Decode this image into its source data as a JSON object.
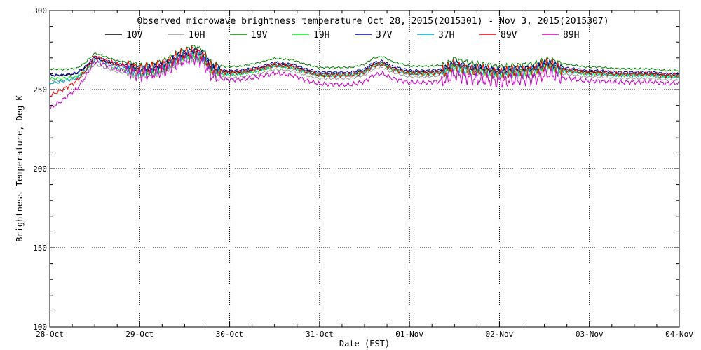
{
  "chart_data": {
    "type": "line",
    "title": "Observed microwave brightness temperature Oct 28, 2015(2015301) - Nov  3, 2015(2015307)",
    "xlabel": "Date (EST)",
    "ylabel": "Brightness Temperature, Deg K",
    "ylim": [
      100,
      300
    ],
    "xlim": [
      0,
      7
    ],
    "y_ticks": [
      100,
      150,
      200,
      250,
      300
    ],
    "x_ticks": [
      {
        "day": 0,
        "label": "28-Oct"
      },
      {
        "day": 1,
        "label": "29-Oct"
      },
      {
        "day": 2,
        "label": "30-Oct"
      },
      {
        "day": 3,
        "label": "31-Oct"
      },
      {
        "day": 4,
        "label": "01-Nov"
      },
      {
        "day": 5,
        "label": "02-Nov"
      },
      {
        "day": 6,
        "label": "03-Nov"
      },
      {
        "day": 7,
        "label": "04-Nov"
      }
    ],
    "grid": true,
    "legend_position": "top",
    "base_curve": {
      "x_days": [
        0,
        0.15,
        0.3,
        0.4,
        0.5,
        0.6,
        0.75,
        0.9,
        1.0,
        1.15,
        1.3,
        1.45,
        1.6,
        1.7,
        1.8,
        1.95,
        2.1,
        2.3,
        2.5,
        2.7,
        2.85,
        3.0,
        3.2,
        3.35,
        3.5,
        3.6,
        3.7,
        3.8,
        4.0,
        4.2,
        4.4,
        4.5,
        4.55,
        4.7,
        4.9,
        5.0,
        5.2,
        5.4,
        5.55,
        5.7,
        5.85,
        5.95,
        6.1,
        6.3,
        6.5,
        6.7,
        6.85,
        7.0
      ],
      "values": [
        259,
        259,
        260,
        264,
        270,
        268,
        265,
        264,
        262,
        263,
        266,
        271,
        274,
        272,
        263,
        261,
        261,
        263,
        266,
        265,
        262,
        260,
        260,
        260,
        262,
        266,
        267,
        264,
        261,
        261,
        262,
        266,
        265,
        263,
        262,
        261,
        262,
        263,
        266,
        263,
        262,
        261,
        261,
        260,
        260,
        260,
        259,
        259
      ]
    },
    "series": [
      {
        "name": "10V",
        "color": "#000000",
        "offset": [
          0,
          0,
          0,
          0
        ],
        "noise": 0.6
      },
      {
        "name": "10H",
        "color": "#999999",
        "offset": [
          -3,
          -4,
          -3,
          -3
        ],
        "noise": 0.8
      },
      {
        "name": "19V",
        "color": "#008000",
        "offset": [
          4,
          3,
          4,
          3
        ],
        "noise": 0.6
      },
      {
        "name": "19H",
        "color": "#00ee00",
        "offset": [
          -2,
          -2,
          -1,
          -1
        ],
        "noise": 1.0
      },
      {
        "name": "37V",
        "color": "#0000aa",
        "offset": [
          0,
          1,
          1,
          1
        ],
        "noise": 0.8
      },
      {
        "name": "37H",
        "color": "#00aadd",
        "offset": [
          -5,
          -1,
          -1,
          -1
        ],
        "noise": 1.2
      },
      {
        "name": "89V",
        "color": "#ee0000",
        "offset": [
          -13,
          1,
          -1,
          0
        ],
        "noise": 1.6
      },
      {
        "name": "89H",
        "color": "#cc00cc",
        "offset": [
          -21,
          -2,
          -7,
          -5
        ],
        "noise": 1.6
      }
    ]
  }
}
